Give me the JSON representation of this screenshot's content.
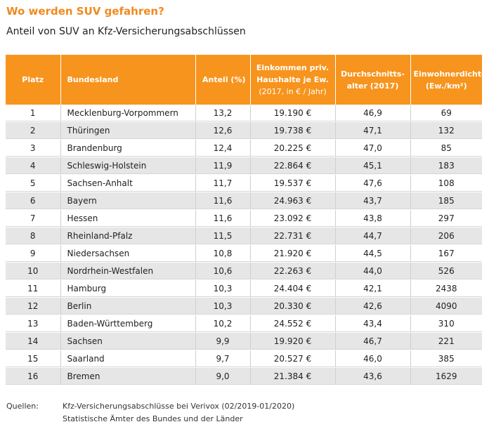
{
  "title": "Wo werden SUV gefahren?",
  "subtitle": "Anteil von SUV an Kfz-Versicherungsabschlüssen",
  "table": {
    "headers": {
      "platz": "Platz",
      "bundesland": "Bundesland",
      "anteil": "Anteil (%)",
      "einkommen_line1": "Einkommen priv.",
      "einkommen_line2": "Haushalte je Ew.",
      "einkommen_line3": "(2017, in € / Jahr)",
      "alter_line1": "Durchschnitts-",
      "alter_line2": "alter (2017)",
      "dichte_line1": "Einwohnerdichte",
      "dichte_line2": "(Ew./km²)"
    },
    "rows": [
      [
        "1",
        "Mecklenburg-Vorpommern",
        "13,2",
        "19.190 €",
        "46,9",
        "69"
      ],
      [
        "2",
        "Thüringen",
        "12,6",
        "19.738 €",
        "47,1",
        "132"
      ],
      [
        "3",
        "Brandenburg",
        "12,4",
        "20.225 €",
        "47,0",
        "85"
      ],
      [
        "4",
        "Schleswig-Holstein",
        "11,9",
        "22.864 €",
        "45,1",
        "183"
      ],
      [
        "5",
        "Sachsen-Anhalt",
        "11,7",
        "19.537 €",
        "47,6",
        "108"
      ],
      [
        "6",
        "Bayern",
        "11,6",
        "24.963 €",
        "43,7",
        "185"
      ],
      [
        "7",
        "Hessen",
        "11,6",
        "23.092 €",
        "43,8",
        "297"
      ],
      [
        "8",
        "Rheinland-Pfalz",
        "11,5",
        "22.731 €",
        "44,7",
        "206"
      ],
      [
        "9",
        "Niedersachsen",
        "10,8",
        "21.920 €",
        "44,5",
        "167"
      ],
      [
        "10",
        "Nordrhein-Westfalen",
        "10,6",
        "22.263 €",
        "44,0",
        "526"
      ],
      [
        "11",
        "Hamburg",
        "10,3",
        "24.404 €",
        "42,1",
        "2438"
      ],
      [
        "12",
        "Berlin",
        "10,3",
        "20.330 €",
        "42,6",
        "4090"
      ],
      [
        "13",
        "Baden-Württemberg",
        "10,2",
        "24.552 €",
        "43,4",
        "310"
      ],
      [
        "14",
        "Sachsen",
        "9,9",
        "19.920 €",
        "46,7",
        "221"
      ],
      [
        "15",
        "Saarland",
        "9,7",
        "20.527 €",
        "46,0",
        "385"
      ],
      [
        "16",
        "Bremen",
        "9,0",
        "21.384 €",
        "43,6",
        "1629"
      ]
    ]
  },
  "footer": {
    "label": "Quellen:",
    "source1": "Kfz-Versicherungsabschlüsse bei Verivox (02/2019-01/2020)",
    "source2": "Statistische Ämter des Bundes und der Länder"
  },
  "colors": {
    "accent": "#f7941d",
    "title": "#f08a1f",
    "row_alt": "#e6e6e6"
  }
}
